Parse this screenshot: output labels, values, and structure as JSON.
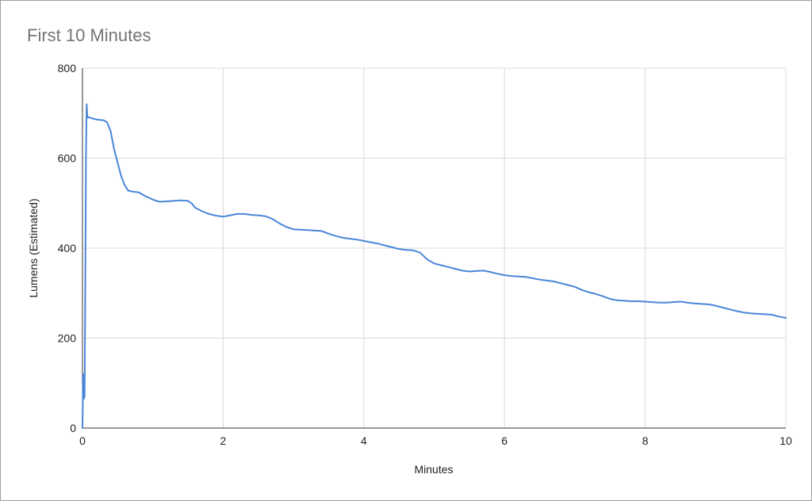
{
  "chart_data": {
    "type": "line",
    "title": "First 10 Minutes",
    "xlabel": "Minutes",
    "ylabel": "Lumens (Estimated)",
    "xlim": [
      0,
      10
    ],
    "ylim": [
      0,
      800
    ],
    "xticks": [
      0,
      2,
      4,
      6,
      8,
      10
    ],
    "yticks": [
      0,
      200,
      400,
      600,
      800
    ],
    "grid": true,
    "color": "#4a86d8",
    "series": [
      {
        "x": [
          0,
          0.01,
          0.02,
          0.03,
          0.04,
          0.05,
          0.06,
          0.07,
          0.08,
          0.1,
          0.15,
          0.2,
          0.25,
          0.3,
          0.35,
          0.4,
          0.45,
          0.5,
          0.55,
          0.6,
          0.65,
          0.7,
          0.75,
          0.8,
          0.9,
          1.0,
          1.05,
          1.1,
          1.2,
          1.3,
          1.4,
          1.5,
          1.55,
          1.6,
          1.7,
          1.8,
          1.9,
          2.0,
          2.1,
          2.2,
          2.3,
          2.4,
          2.5,
          2.6,
          2.7,
          2.8,
          2.9,
          3.0,
          3.1,
          3.2,
          3.3,
          3.4,
          3.5,
          3.6,
          3.7,
          3.8,
          3.9,
          4.0,
          4.1,
          4.2,
          4.3,
          4.4,
          4.5,
          4.6,
          4.7,
          4.8,
          4.9,
          5.0,
          5.1,
          5.2,
          5.3,
          5.4,
          5.5,
          5.6,
          5.7,
          5.8,
          5.9,
          6.0,
          6.1,
          6.2,
          6.3,
          6.4,
          6.5,
          6.6,
          6.7,
          6.8,
          6.9,
          7.0,
          7.1,
          7.2,
          7.3,
          7.4,
          7.5,
          7.6,
          7.7,
          7.8,
          7.9,
          8.0,
          8.1,
          8.2,
          8.3,
          8.4,
          8.5,
          8.6,
          8.7,
          8.8,
          8.9,
          9.0,
          9.1,
          9.2,
          9.3,
          9.4,
          9.5,
          9.6,
          9.7,
          9.8,
          9.9,
          10.0
        ],
        "y": [
          0,
          120,
          65,
          70,
          300,
          600,
          720,
          690,
          692,
          690,
          688,
          686,
          685,
          684,
          680,
          660,
          620,
          590,
          560,
          540,
          528,
          526,
          525,
          524,
          515,
          508,
          505,
          503,
          504,
          505,
          506,
          505,
          500,
          490,
          482,
          476,
          472,
          470,
          473,
          476,
          476,
          474,
          473,
          471,
          465,
          455,
          447,
          442,
          441,
          440,
          439,
          438,
          432,
          427,
          423,
          421,
          419,
          416,
          413,
          410,
          406,
          402,
          398,
          396,
          395,
          390,
          375,
          366,
          362,
          358,
          354,
          350,
          348,
          349,
          350,
          347,
          343,
          340,
          338,
          337,
          336,
          333,
          330,
          328,
          326,
          322,
          318,
          314,
          307,
          302,
          298,
          293,
          287,
          284,
          283,
          282,
          282,
          281,
          280,
          279,
          279,
          280,
          281,
          279,
          277,
          276,
          275,
          272,
          268,
          264,
          260,
          257,
          255,
          254,
          253,
          252,
          248,
          245
        ]
      }
    ]
  }
}
